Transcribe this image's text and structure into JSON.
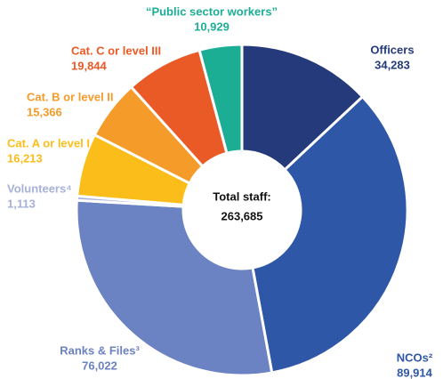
{
  "chart_data": {
    "type": "donut",
    "categories": [
      "Officers",
      "NCOs²",
      "Ranks & Files³",
      "Volunteers⁴",
      "Cat. A or level I",
      "Cat. B or level II",
      "Cat. C or level III",
      "“Public sector workers”"
    ],
    "values": [
      34283,
      89914,
      76022,
      1113,
      16213,
      15366,
      19844,
      10929
    ],
    "value_labels": [
      "34,283",
      "89,914",
      "76,022",
      "1,113",
      "16,213",
      "15,366",
      "19,844",
      "10,929"
    ],
    "colors": [
      "#253a7a",
      "#2f57a8",
      "#6b82c3",
      "#a7b1d8",
      "#fbbd1a",
      "#f59b2a",
      "#ea5a26",
      "#1cae95"
    ],
    "center_text": [
      "Total staff:",
      "263,685"
    ]
  }
}
